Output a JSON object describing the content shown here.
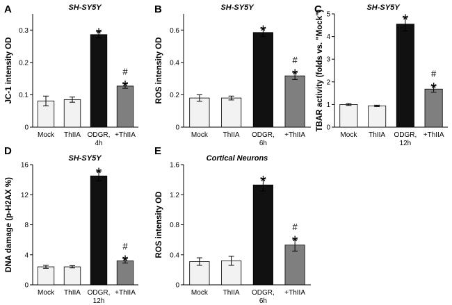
{
  "chart_data": [
    {
      "panel": "A",
      "type": "bar",
      "title": "SH-SY5Y",
      "ylabel": "JC-1 intensity OD",
      "xlabel": "",
      "ylim": [
        0,
        0.35
      ],
      "yticks": [
        "0",
        "0.1",
        "0.2",
        "0.3"
      ],
      "categories": [
        "Mock",
        "ThIIA",
        "ODGR,",
        "+ThIIA"
      ],
      "category_sub": [
        "",
        "",
        "4h",
        ""
      ],
      "values": [
        0.081,
        0.085,
        0.286,
        0.127
      ],
      "errors": [
        0.015,
        0.008,
        0.01,
        0.007
      ],
      "bar_colors": [
        "#f2f2f2",
        "#f2f2f2",
        "#111111",
        "#7f7f7f"
      ],
      "marks": [
        [],
        [],
        [
          "*"
        ],
        [
          "#",
          "*"
        ]
      ]
    },
    {
      "panel": "B",
      "type": "bar",
      "title": "SH-SY5Y",
      "ylabel": "ROS intensity OD",
      "xlabel": "",
      "ylim": [
        0,
        0.7
      ],
      "yticks": [
        "0",
        "0.2",
        "0.4",
        "0.6"
      ],
      "categories": [
        "Mock",
        "ThIIA",
        "ODGR,",
        "+ThIIA"
      ],
      "category_sub": [
        "",
        "",
        "6h",
        ""
      ],
      "values": [
        0.18,
        0.18,
        0.585,
        0.317
      ],
      "errors": [
        0.02,
        0.012,
        0.025,
        0.022
      ],
      "bar_colors": [
        "#f2f2f2",
        "#f2f2f2",
        "#111111",
        "#7f7f7f"
      ],
      "marks": [
        [],
        [],
        [
          "*"
        ],
        [
          "#",
          "*"
        ]
      ]
    },
    {
      "panel": "C",
      "type": "bar",
      "title": "SH-SY5Y",
      "ylabel": "TBAR activity (folds vs. \"Mock\")",
      "xlabel": "",
      "ylim": [
        0,
        5
      ],
      "yticks": [
        "0",
        "1",
        "2",
        "3",
        "4",
        "5"
      ],
      "categories": [
        "Mock",
        "ThIIA",
        "ODGR,",
        "+ThIIA"
      ],
      "category_sub": [
        "",
        "",
        "12h",
        ""
      ],
      "values": [
        1.0,
        0.94,
        4.55,
        1.68
      ],
      "errors": [
        0.04,
        0.03,
        0.3,
        0.14
      ],
      "bar_colors": [
        "#f2f2f2",
        "#f2f2f2",
        "#111111",
        "#7f7f7f"
      ],
      "marks": [
        [],
        [],
        [
          "*"
        ],
        [
          "#",
          "*"
        ]
      ]
    },
    {
      "panel": "D",
      "type": "bar",
      "title": "SH-SY5Y",
      "ylabel": "DNA damage (p-H2AX %)",
      "xlabel": "",
      "ylim": [
        0,
        16
      ],
      "yticks": [
        "0",
        "4",
        "8",
        "12",
        "16"
      ],
      "categories": [
        "Mock",
        "ThIIA",
        "ODGR,",
        "+ThIIA"
      ],
      "category_sub": [
        "",
        "",
        "12h",
        ""
      ],
      "values": [
        2.4,
        2.4,
        14.5,
        3.2
      ],
      "errors": [
        0.2,
        0.15,
        0.65,
        0.3
      ],
      "bar_colors": [
        "#f2f2f2",
        "#f2f2f2",
        "#111111",
        "#7f7f7f"
      ],
      "marks": [
        [],
        [],
        [
          "*"
        ],
        [
          "#",
          "*"
        ]
      ]
    },
    {
      "panel": "E",
      "type": "bar",
      "title": "Cortical Neurons",
      "ylabel": "ROS intensity OD",
      "xlabel": "",
      "ylim": [
        0,
        1.6
      ],
      "yticks": [
        "0",
        "0.4",
        "0.8",
        "1.2",
        "1.6"
      ],
      "categories": [
        "Mock",
        "ThIIA",
        "ODGR,",
        "+ThIIA"
      ],
      "category_sub": [
        "",
        "",
        "6h",
        ""
      ],
      "values": [
        0.31,
        0.32,
        1.33,
        0.53
      ],
      "errors": [
        0.05,
        0.06,
        0.08,
        0.08
      ],
      "bar_colors": [
        "#f2f2f2",
        "#f2f2f2",
        "#111111",
        "#7f7f7f"
      ],
      "marks": [
        [],
        [],
        [
          "*"
        ],
        [
          "#",
          "*"
        ]
      ]
    }
  ]
}
